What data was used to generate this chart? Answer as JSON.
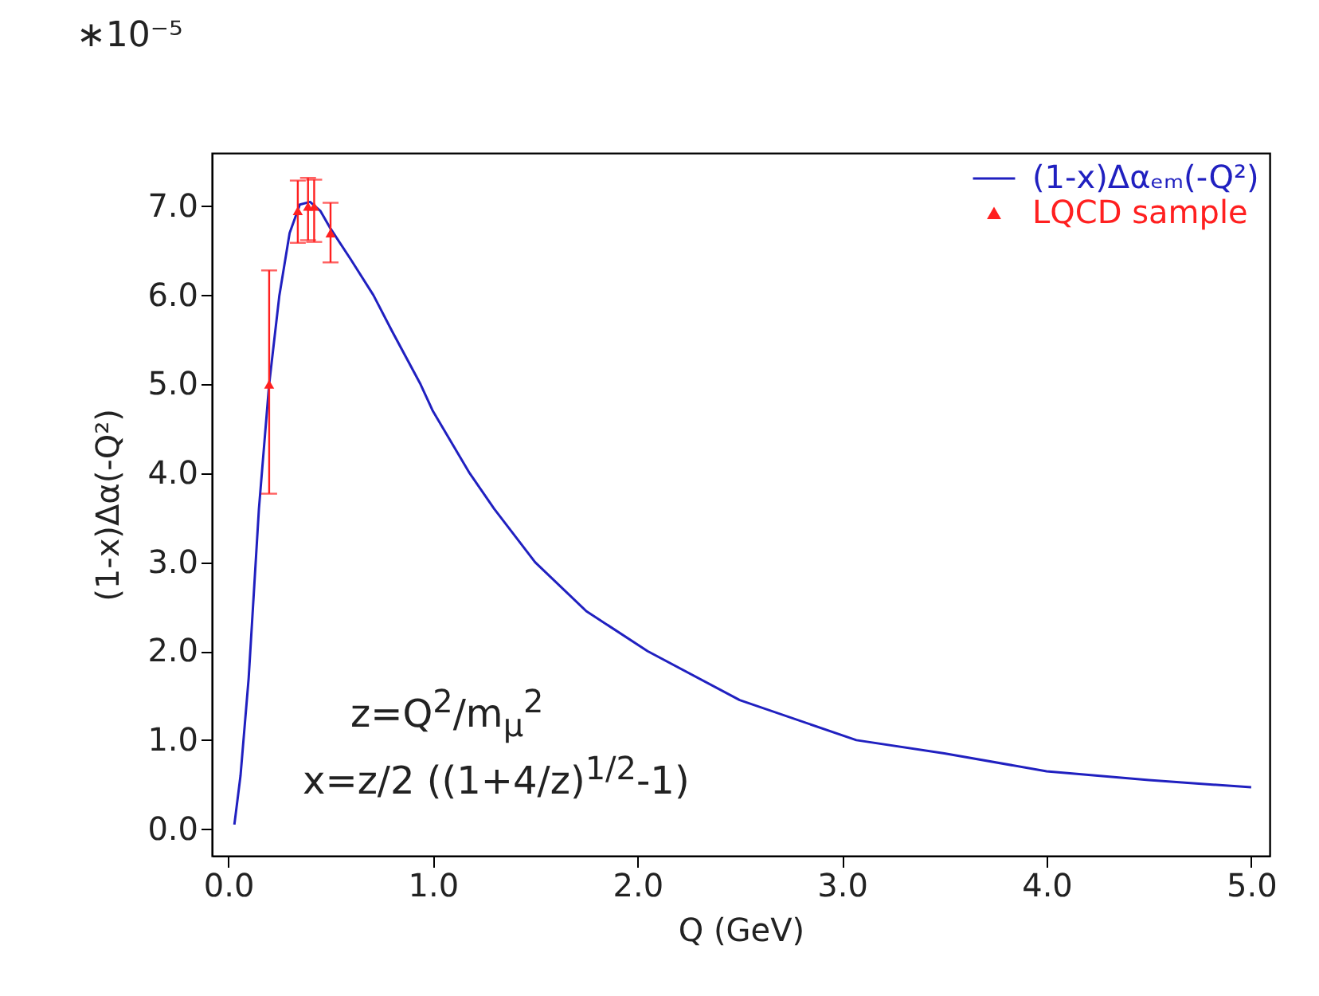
{
  "chart_data": {
    "type": "line",
    "xlabel": "Q (GeV)",
    "ylabel": "(1-x)Δα(-Q²)",
    "annotations": [
      "∗10⁻⁵",
      "z=Q$^{2}$/m$_{μ}$$^{2}$",
      "x=z/2  ((1+4/z)$^{1/2}$-1)"
    ],
    "xlim": [
      -0.08,
      5.09
    ],
    "ylim": [
      -0.3,
      7.6
    ],
    "xticks": [
      {
        "value": 0,
        "label": "0.0"
      },
      {
        "value": 1,
        "label": "1.0"
      },
      {
        "value": 2,
        "label": "2.0"
      },
      {
        "value": 3,
        "label": "3.0"
      },
      {
        "value": 4,
        "label": "4.0"
      },
      {
        "value": 5,
        "label": "5.0"
      }
    ],
    "yticks": [
      {
        "value": 0,
        "label": "0.0"
      },
      {
        "value": 1,
        "label": "1.0"
      },
      {
        "value": 2,
        "label": "2.0"
      },
      {
        "value": 3,
        "label": "3.0"
      },
      {
        "value": 4,
        "label": "4.0"
      },
      {
        "value": 5,
        "label": "5.0"
      },
      {
        "value": 6,
        "label": "6.0"
      },
      {
        "value": 7,
        "label": "7.0"
      }
    ],
    "grid": false,
    "legend": "top right",
    "series": [
      {
        "name": "(1-x)Δαₑₘ(-Q²)",
        "color": "#2020c0",
        "line_style": "solid",
        "marker": "none",
        "x": [
          0.03,
          0.06,
          0.1,
          0.15,
          0.2,
          0.25,
          0.3,
          0.35,
          0.4,
          0.45,
          0.5,
          0.6,
          0.71,
          0.8,
          0.94,
          1.0,
          1.18,
          1.3,
          1.5,
          1.75,
          2.05,
          2.5,
          3.07,
          3.5,
          4.0,
          4.5,
          5.0
        ],
        "values": [
          0.05,
          0.6,
          1.7,
          3.6,
          5.0,
          6.0,
          6.7,
          7.02,
          7.05,
          6.95,
          6.75,
          6.4,
          6.0,
          5.6,
          5.0,
          4.7,
          4.0,
          3.6,
          3.0,
          2.45,
          2.0,
          1.45,
          1.0,
          0.85,
          0.65,
          0.55,
          0.47
        ]
      },
      {
        "name": "LQCD sample",
        "type": "scatter",
        "color": "#ff2020",
        "marker": "triangle",
        "x": [
          0.2,
          0.34,
          0.39,
          0.42,
          0.5
        ],
        "values": [
          5.0,
          6.95,
          7.0,
          7.0,
          6.7
        ],
        "errors": [
          [
            3.77,
            6.28
          ],
          [
            6.59,
            7.29
          ],
          [
            6.62,
            7.32
          ],
          [
            6.6,
            7.3
          ],
          [
            6.37,
            7.04
          ]
        ]
      }
    ]
  }
}
